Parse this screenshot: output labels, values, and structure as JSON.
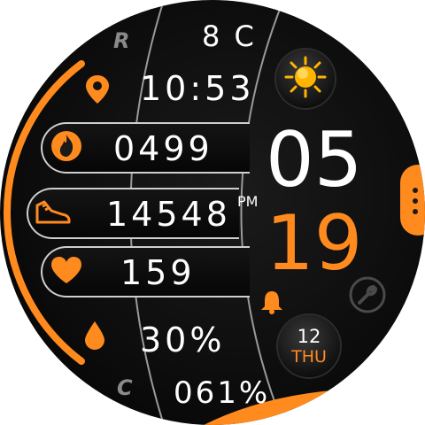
{
  "top_row": {
    "letter": "R",
    "temperature": "8 C"
  },
  "location_row": {
    "time": "10:53",
    "icon": "location-pin-icon"
  },
  "calories_row": {
    "value": "0499",
    "icon": "flame-icon"
  },
  "steps_row": {
    "value": "14548",
    "icon": "shoe-icon"
  },
  "heart_row": {
    "value": "159",
    "icon": "heart-icon"
  },
  "humidity_row": {
    "value": "30%",
    "icon": "droplet-icon"
  },
  "bottom_row": {
    "letter": "C",
    "battery": "061%"
  },
  "clock": {
    "hour": "05",
    "minute": "19",
    "ampm": "PM"
  },
  "date": {
    "day": "12",
    "weekday": "THU"
  },
  "weather": {
    "icon": "sun-icon"
  },
  "colors": {
    "accent": "#ff8a1e",
    "text": "#ffffff",
    "muted": "#8a8a8a",
    "background": "#0b0b0b"
  }
}
